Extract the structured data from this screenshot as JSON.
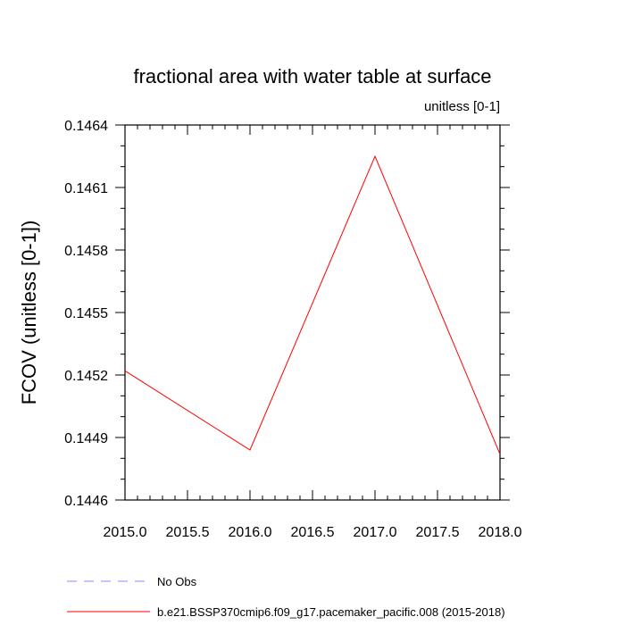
{
  "chart_data": {
    "type": "line",
    "title": "fractional area with water table at surface",
    "subtitle": "unitless [0-1]",
    "ylabel": "FCOV  (unitless [0-1])",
    "xlabel": "",
    "xlim": [
      2015.0,
      2018.0
    ],
    "ylim": [
      0.1446,
      0.1464
    ],
    "x_ticks": [
      2015.0,
      2015.5,
      2016.0,
      2016.5,
      2017.0,
      2017.5,
      2018.0
    ],
    "x_tick_labels": [
      "2015.0",
      "2015.5",
      "2016.0",
      "2016.5",
      "2017.0",
      "2017.5",
      "2018.0"
    ],
    "y_ticks": [
      0.1446,
      0.1449,
      0.1452,
      0.1455,
      0.1458,
      0.1461,
      0.1464
    ],
    "y_tick_labels": [
      "0.1446",
      "0.1449",
      "0.1452",
      "0.1455",
      "0.1458",
      "0.1461",
      "0.1464"
    ],
    "grid": false,
    "legend_position": "bottom",
    "series": [
      {
        "name": "b.e21.BSSP370cmip6.f09_g17.pacemaker_pacific.008 (2015-2018)",
        "color": "#ff0000",
        "dash": "solid",
        "x": [
          2015.0,
          2016.0,
          2017.0,
          2018.0
        ],
        "y": [
          0.14522,
          0.14484,
          0.14625,
          0.14482
        ]
      }
    ],
    "legend": [
      {
        "label": "No Obs",
        "color": "#8888ff",
        "dash": "dashed"
      },
      {
        "label": "b.e21.BSSP370cmip6.f09_g17.pacemaker_pacific.008 (2015-2018)",
        "color": "#ff0000",
        "dash": "solid"
      }
    ]
  }
}
